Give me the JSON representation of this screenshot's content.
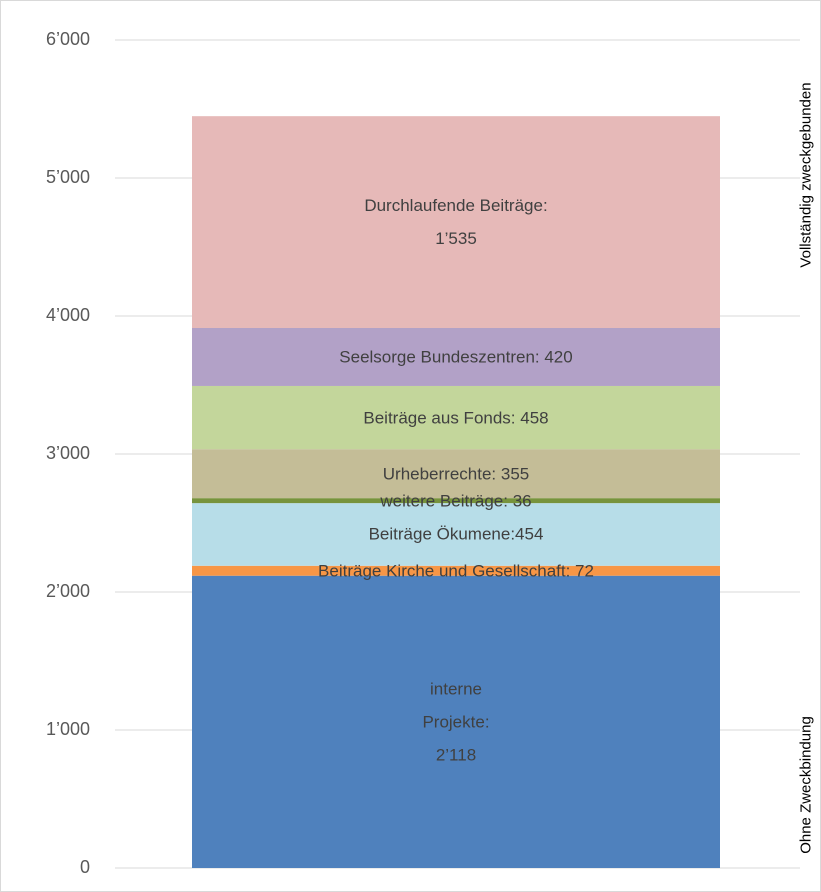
{
  "chart_data": {
    "type": "stacked_bar",
    "categories": [
      null
    ],
    "ylim": [
      0,
      6000
    ],
    "yticks": [
      0,
      {
        "value": 1000,
        "label": "1’000"
      },
      {
        "value": 2000,
        "label": "2’000"
      },
      {
        "value": 3000,
        "label": "3’000"
      },
      {
        "value": 4000,
        "label": "4’000"
      },
      {
        "value": 5000,
        "label": "5’000"
      },
      {
        "value": 6000,
        "label": "6’000"
      }
    ],
    "grid": true,
    "series": [
      {
        "color": "#4f81bd",
        "values": [
          2118
        ],
        "value_labels": [
          "interne\nProjekte:\n2’118"
        ]
      },
      {
        "color": "#f79646",
        "values": [
          72
        ],
        "value_labels": [
          "Beiträge Kirche und Gesellschaft: 72"
        ]
      },
      {
        "color": "#b7dde8",
        "values": [
          454
        ],
        "value_labels": [
          "Beiträge Ökumene:454"
        ]
      },
      {
        "color": "#77933c",
        "values": [
          36
        ],
        "value_labels": [
          "weitere Beiträge: 36"
        ]
      },
      {
        "color": "#c4bd97",
        "values": [
          355
        ],
        "value_labels": [
          "Urheberrechte: 355"
        ]
      },
      {
        "color": "#c3d69b",
        "values": [
          458
        ],
        "value_labels": [
          "Beiträge aus Fonds: 458"
        ]
      },
      {
        "color": "#b2a1c7",
        "values": [
          420
        ],
        "value_labels": [
          "Seelsorge Bundeszentren: 420"
        ]
      },
      {
        "color": "#e6b9b8",
        "values": [
          1535
        ],
        "value_labels": [
          "Durchlaufende Beiträge:\n1’535"
        ]
      }
    ],
    "annotations": [
      "Vollständig zweckgebunden",
      "Ohne Zweckbindung"
    ]
  }
}
